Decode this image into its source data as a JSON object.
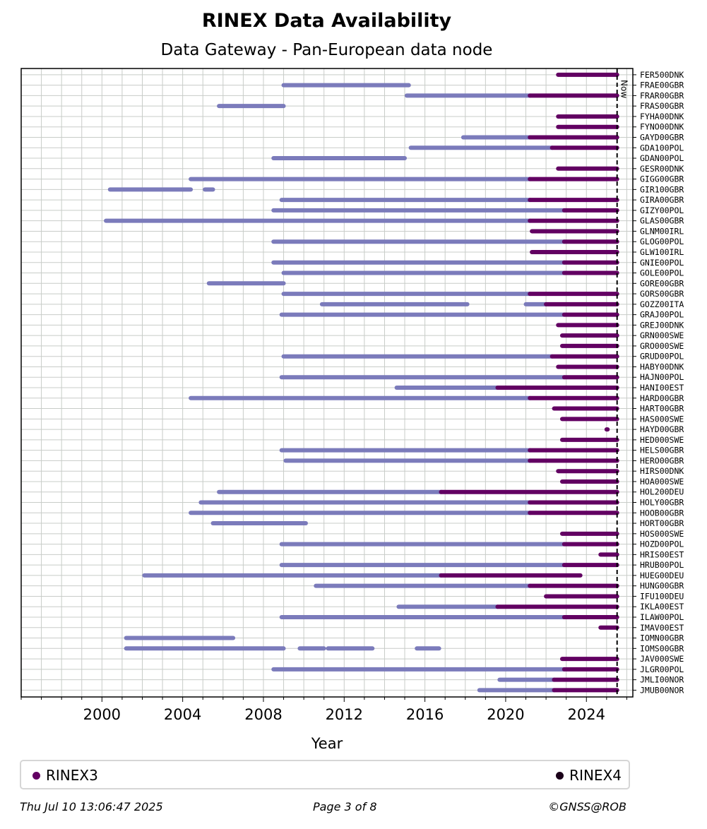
{
  "chart_data": {
    "type": "timeline",
    "title": "RINEX Data Availability",
    "subtitle": "Data Gateway - Pan-European data node",
    "xlabel": "Year",
    "xlim": [
      1996.0,
      2026.3
    ],
    "xticks": [
      2000,
      2004,
      2008,
      2012,
      2016,
      2020,
      2024
    ],
    "now": 2025.52,
    "now_label": "Now",
    "colors": {
      "rinex2": "#7b7bbb",
      "rinex3": "#620062",
      "rinex4": "#1a0019",
      "now_line": "#000000"
    },
    "legend": [
      {
        "name": "RINEX3",
        "color": "#620062"
      },
      {
        "name": "RINEX4",
        "color": "#1a0019"
      }
    ],
    "stations": [
      {
        "name": "FER500DNK",
        "segments": [
          [
            2022.6,
            2025.52,
            "r3"
          ]
        ]
      },
      {
        "name": "FRAE00GBR",
        "segments": [
          [
            2009.0,
            2015.2,
            "r2"
          ]
        ]
      },
      {
        "name": "FRAR00GBR",
        "segments": [
          [
            2015.1,
            2021.2,
            "r2"
          ],
          [
            2021.2,
            2025.52,
            "r3"
          ]
        ]
      },
      {
        "name": "FRAS00GBR",
        "segments": [
          [
            2005.8,
            2009.0,
            "r2"
          ]
        ]
      },
      {
        "name": "FYHA00DNK",
        "segments": [
          [
            2022.6,
            2025.52,
            "r3"
          ]
        ]
      },
      {
        "name": "FYNO00DNK",
        "segments": [
          [
            2022.6,
            2025.52,
            "r3"
          ]
        ]
      },
      {
        "name": "GAYD00GBR",
        "segments": [
          [
            2017.9,
            2021.2,
            "r2"
          ],
          [
            2021.2,
            2025.52,
            "r3"
          ]
        ]
      },
      {
        "name": "GDA100POL",
        "segments": [
          [
            2015.3,
            2022.3,
            "r2"
          ],
          [
            2022.3,
            2025.52,
            "r3"
          ]
        ]
      },
      {
        "name": "GDAN00POL",
        "segments": [
          [
            2008.5,
            2015.0,
            "r2"
          ]
        ]
      },
      {
        "name": "GESR00DNK",
        "segments": [
          [
            2022.6,
            2025.52,
            "r3"
          ]
        ]
      },
      {
        "name": "GIGG00GBR",
        "segments": [
          [
            2004.4,
            2021.2,
            "r2"
          ],
          [
            2021.2,
            2025.52,
            "r3"
          ]
        ]
      },
      {
        "name": "GIR100GBR",
        "segments": [
          [
            2000.4,
            2004.4,
            "r2"
          ],
          [
            2005.1,
            2005.5,
            "r2"
          ]
        ]
      },
      {
        "name": "GIRA00GBR",
        "segments": [
          [
            2008.9,
            2021.2,
            "r2"
          ],
          [
            2021.2,
            2025.52,
            "r3"
          ]
        ]
      },
      {
        "name": "GIZY00POL",
        "segments": [
          [
            2008.5,
            2022.9,
            "r2"
          ],
          [
            2022.9,
            2025.52,
            "r3"
          ]
        ]
      },
      {
        "name": "GLAS00GBR",
        "segments": [
          [
            2000.2,
            2021.2,
            "r2"
          ],
          [
            2021.2,
            2025.52,
            "r3"
          ]
        ]
      },
      {
        "name": "GLNM00IRL",
        "segments": [
          [
            2021.3,
            2025.52,
            "r3"
          ]
        ]
      },
      {
        "name": "GLOG00POL",
        "segments": [
          [
            2008.5,
            2022.9,
            "r2"
          ],
          [
            2022.9,
            2025.52,
            "r3"
          ]
        ]
      },
      {
        "name": "GLW100IRL",
        "segments": [
          [
            2021.3,
            2025.52,
            "r3"
          ]
        ]
      },
      {
        "name": "GNIE00POL",
        "segments": [
          [
            2008.5,
            2022.9,
            "r2"
          ],
          [
            2022.9,
            2025.52,
            "r3"
          ]
        ]
      },
      {
        "name": "GOLE00POL",
        "segments": [
          [
            2009.0,
            2022.9,
            "r2"
          ],
          [
            2022.9,
            2025.52,
            "r3"
          ]
        ]
      },
      {
        "name": "GORE00GBR",
        "segments": [
          [
            2005.3,
            2009.0,
            "r2"
          ]
        ]
      },
      {
        "name": "GORS00GBR",
        "segments": [
          [
            2009.0,
            2021.2,
            "r2"
          ],
          [
            2021.2,
            2025.52,
            "r3"
          ]
        ]
      },
      {
        "name": "GOZZ00ITA",
        "segments": [
          [
            2010.9,
            2018.1,
            "r2"
          ],
          [
            2021.0,
            2022.0,
            "r2"
          ],
          [
            2022.0,
            2025.52,
            "r3"
          ]
        ]
      },
      {
        "name": "GRAJ00POL",
        "segments": [
          [
            2008.9,
            2022.9,
            "r2"
          ],
          [
            2022.9,
            2025.52,
            "r3"
          ]
        ]
      },
      {
        "name": "GREJ00DNK",
        "segments": [
          [
            2022.6,
            2025.52,
            "r3"
          ]
        ]
      },
      {
        "name": "GRN000SWE",
        "segments": [
          [
            2022.8,
            2025.52,
            "r3"
          ]
        ]
      },
      {
        "name": "GRO000SWE",
        "segments": [
          [
            2022.8,
            2025.52,
            "r3"
          ]
        ]
      },
      {
        "name": "GRUD00POL",
        "segments": [
          [
            2009.0,
            2022.3,
            "r2"
          ],
          [
            2022.3,
            2025.52,
            "r3"
          ]
        ]
      },
      {
        "name": "HABY00DNK",
        "segments": [
          [
            2022.6,
            2025.52,
            "r3"
          ]
        ]
      },
      {
        "name": "HAJN00POL",
        "segments": [
          [
            2008.9,
            2022.9,
            "r2"
          ],
          [
            2022.9,
            2025.52,
            "r3"
          ]
        ]
      },
      {
        "name": "HANI00EST",
        "segments": [
          [
            2014.6,
            2019.6,
            "r2"
          ],
          [
            2019.6,
            2025.52,
            "r3"
          ]
        ]
      },
      {
        "name": "HARD00GBR",
        "segments": [
          [
            2004.4,
            2021.2,
            "r2"
          ],
          [
            2021.2,
            2025.52,
            "r3"
          ]
        ]
      },
      {
        "name": "HART00GBR",
        "segments": [
          [
            2022.4,
            2025.52,
            "r3"
          ]
        ]
      },
      {
        "name": "HAS000SWE",
        "segments": [
          [
            2022.8,
            2025.52,
            "r3"
          ]
        ]
      },
      {
        "name": "HAYD00GBR",
        "segments": [
          [
            2025.0,
            2025.05,
            "r3"
          ]
        ]
      },
      {
        "name": "HED000SWE",
        "segments": [
          [
            2022.8,
            2025.52,
            "r3"
          ]
        ]
      },
      {
        "name": "HELS00GBR",
        "segments": [
          [
            2008.9,
            2021.2,
            "r2"
          ],
          [
            2021.2,
            2025.52,
            "r3"
          ]
        ]
      },
      {
        "name": "HERO00GBR",
        "segments": [
          [
            2009.1,
            2021.2,
            "r2"
          ],
          [
            2021.2,
            2025.52,
            "r3"
          ]
        ]
      },
      {
        "name": "HIRS00DNK",
        "segments": [
          [
            2022.6,
            2025.52,
            "r3"
          ]
        ]
      },
      {
        "name": "HOA000SWE",
        "segments": [
          [
            2022.8,
            2025.52,
            "r3"
          ]
        ]
      },
      {
        "name": "HOL200DEU",
        "segments": [
          [
            2005.8,
            2016.8,
            "r2"
          ],
          [
            2016.8,
            2025.52,
            "r3"
          ]
        ]
      },
      {
        "name": "HOLY00GBR",
        "segments": [
          [
            2004.9,
            2021.2,
            "r2"
          ],
          [
            2021.2,
            2025.52,
            "r3"
          ]
        ]
      },
      {
        "name": "HOOB00GBR",
        "segments": [
          [
            2004.4,
            2021.2,
            "r2"
          ],
          [
            2021.2,
            2025.52,
            "r3"
          ]
        ]
      },
      {
        "name": "HORT00GBR",
        "segments": [
          [
            2005.5,
            2010.1,
            "r2"
          ]
        ]
      },
      {
        "name": "HOS000SWE",
        "segments": [
          [
            2022.8,
            2025.52,
            "r3"
          ]
        ]
      },
      {
        "name": "HOZD00POL",
        "segments": [
          [
            2008.9,
            2022.9,
            "r2"
          ],
          [
            2022.9,
            2025.52,
            "r3"
          ]
        ]
      },
      {
        "name": "HRIS00EST",
        "segments": [
          [
            2024.7,
            2025.52,
            "r3"
          ]
        ]
      },
      {
        "name": "HRUB00POL",
        "segments": [
          [
            2008.9,
            2022.9,
            "r2"
          ],
          [
            2022.9,
            2025.52,
            "r3"
          ]
        ]
      },
      {
        "name": "HUEG00DEU",
        "segments": [
          [
            2002.1,
            2016.8,
            "r2"
          ],
          [
            2016.8,
            2023.7,
            "r3"
          ]
        ]
      },
      {
        "name": "HUNG00GBR",
        "segments": [
          [
            2010.6,
            2021.2,
            "r2"
          ],
          [
            2021.2,
            2025.52,
            "r3"
          ]
        ]
      },
      {
        "name": "IFU100DEU",
        "segments": [
          [
            2022.0,
            2025.52,
            "r3"
          ]
        ]
      },
      {
        "name": "IKLA00EST",
        "segments": [
          [
            2014.7,
            2019.6,
            "r2"
          ],
          [
            2019.6,
            2025.52,
            "r3"
          ]
        ]
      },
      {
        "name": "ILAW00POL",
        "segments": [
          [
            2008.9,
            2022.9,
            "r2"
          ],
          [
            2022.9,
            2025.52,
            "r3"
          ]
        ]
      },
      {
        "name": "IMAV00EST",
        "segments": [
          [
            2024.7,
            2025.52,
            "r3"
          ]
        ]
      },
      {
        "name": "IOMN00GBR",
        "segments": [
          [
            2001.2,
            2006.5,
            "r2"
          ]
        ]
      },
      {
        "name": "IOMS00GBR",
        "segments": [
          [
            2001.2,
            2009.0,
            "r2"
          ],
          [
            2009.8,
            2011.0,
            "r2"
          ],
          [
            2011.2,
            2013.4,
            "r2"
          ],
          [
            2015.6,
            2016.7,
            "r2"
          ]
        ]
      },
      {
        "name": "JAV000SWE",
        "segments": [
          [
            2022.8,
            2025.52,
            "r3"
          ]
        ]
      },
      {
        "name": "JLGR00POL",
        "segments": [
          [
            2008.5,
            2022.9,
            "r2"
          ],
          [
            2022.9,
            2025.52,
            "r3"
          ]
        ]
      },
      {
        "name": "JMLI00NOR",
        "segments": [
          [
            2019.7,
            2022.4,
            "r2"
          ],
          [
            2022.4,
            2025.52,
            "r3"
          ]
        ]
      },
      {
        "name": "JMUB00NOR",
        "segments": [
          [
            2018.7,
            2022.4,
            "r2"
          ],
          [
            2022.4,
            2025.52,
            "r3"
          ]
        ]
      }
    ]
  },
  "footer": {
    "timestamp": "Thu Jul 10 13:06:47 2025",
    "page": "Page 3 of 8",
    "credit": "©GNSS@ROB"
  }
}
